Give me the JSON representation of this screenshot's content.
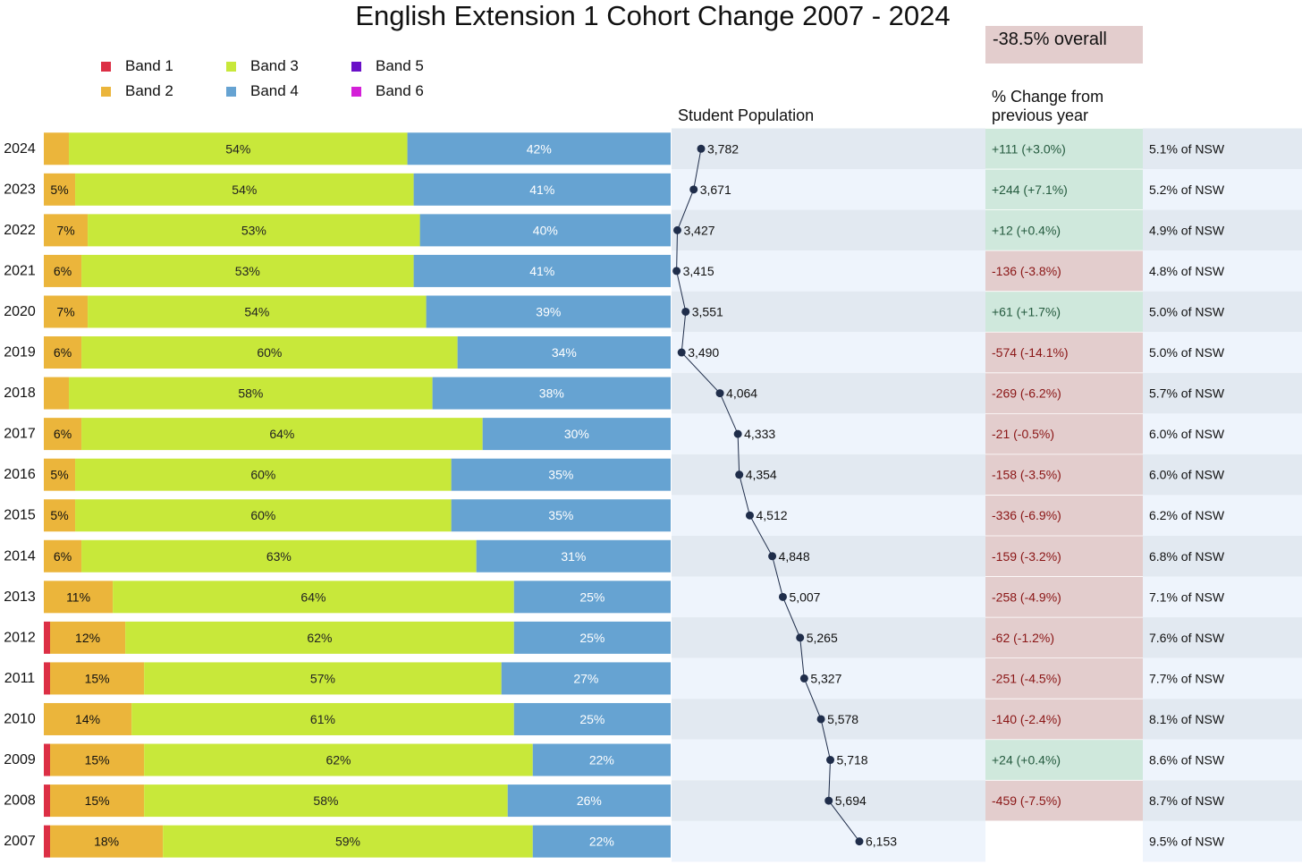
{
  "title": "English Extension 1 Cohort Change 2007 - 2024",
  "overall_change": "-38.5% overall",
  "headers": {
    "population": "Student Population",
    "change_line1": "% Change from",
    "change_line2": "previous year"
  },
  "legend": [
    {
      "label": "Band 1",
      "color": "#dc2f45"
    },
    {
      "label": "Band 3",
      "color": "#c8e83a"
    },
    {
      "label": "Band 5",
      "color": "#6a10c8"
    },
    {
      "label": "Band 2",
      "color": "#ebb53b"
    },
    {
      "label": "Band 4",
      "color": "#66a3d2"
    },
    {
      "label": "Band 6",
      "color": "#d420d8"
    }
  ],
  "colors": {
    "band1": "#dc2f45",
    "band2": "#ebb53b",
    "band3": "#c8e83a",
    "band4": "#66a3d2",
    "row_dark": "#e2e9f1",
    "row_light": "#eef4fc",
    "pos_bg": "#cfe8dc",
    "neg_bg": "#e3cdcd",
    "pos_text": "#245a3e",
    "neg_text": "#8a1515",
    "line": "#1f2d4a"
  },
  "chart_data": {
    "type": "bar",
    "orientation": "horizontal-stacked-percent",
    "title": "English Extension 1 Cohort Change 2007 - 2024",
    "series_names": [
      "Band 1",
      "Band 2",
      "Band 3",
      "Band 4",
      "Band 5",
      "Band 6"
    ],
    "rows": [
      {
        "year": "2024",
        "bands": [
          0,
          4,
          54,
          42
        ],
        "labels": [
          "",
          "",
          "54%",
          "42%"
        ],
        "population": 3782,
        "pop_label": "3,782",
        "change": "+111  (+3.0%)",
        "positive": true,
        "nsw": "5.1% of NSW"
      },
      {
        "year": "2023",
        "bands": [
          0,
          5,
          54,
          41
        ],
        "labels": [
          "",
          "5%",
          "54%",
          "41%"
        ],
        "population": 3671,
        "pop_label": "3,671",
        "change": "+244  (+7.1%)",
        "positive": true,
        "nsw": "5.2% of NSW"
      },
      {
        "year": "2022",
        "bands": [
          0,
          7,
          53,
          40
        ],
        "labels": [
          "",
          "7%",
          "53%",
          "40%"
        ],
        "population": 3427,
        "pop_label": "3,427",
        "change": "+12  (+0.4%)",
        "positive": true,
        "nsw": "4.9% of NSW"
      },
      {
        "year": "2021",
        "bands": [
          0,
          6,
          53,
          41
        ],
        "labels": [
          "",
          "6%",
          "53%",
          "41%"
        ],
        "population": 3415,
        "pop_label": "3,415",
        "change": "-136  (-3.8%)",
        "positive": false,
        "nsw": "4.8% of NSW"
      },
      {
        "year": "2020",
        "bands": [
          0,
          7,
          54,
          39
        ],
        "labels": [
          "",
          "7%",
          "54%",
          "39%"
        ],
        "population": 3551,
        "pop_label": "3,551",
        "change": "+61  (+1.7%)",
        "positive": true,
        "nsw": "5.0% of NSW"
      },
      {
        "year": "2019",
        "bands": [
          0,
          6,
          60,
          34
        ],
        "labels": [
          "",
          "6%",
          "60%",
          "34%"
        ],
        "population": 3490,
        "pop_label": "3,490",
        "change": "-574  (-14.1%)",
        "positive": false,
        "nsw": "5.0% of NSW"
      },
      {
        "year": "2018",
        "bands": [
          0,
          4,
          58,
          38
        ],
        "labels": [
          "",
          "",
          "58%",
          "38%"
        ],
        "population": 4064,
        "pop_label": "4,064",
        "change": "-269  (-6.2%)",
        "positive": false,
        "nsw": "5.7% of NSW"
      },
      {
        "year": "2017",
        "bands": [
          0,
          6,
          64,
          30
        ],
        "labels": [
          "",
          "6%",
          "64%",
          "30%"
        ],
        "population": 4333,
        "pop_label": "4,333",
        "change": "-21  (-0.5%)",
        "positive": false,
        "nsw": "6.0% of NSW"
      },
      {
        "year": "2016",
        "bands": [
          0,
          5,
          60,
          35
        ],
        "labels": [
          "",
          "5%",
          "60%",
          "35%"
        ],
        "population": 4354,
        "pop_label": "4,354",
        "change": "-158  (-3.5%)",
        "positive": false,
        "nsw": "6.0% of NSW"
      },
      {
        "year": "2015",
        "bands": [
          0,
          5,
          60,
          35
        ],
        "labels": [
          "",
          "5%",
          "60%",
          "35%"
        ],
        "population": 4512,
        "pop_label": "4,512",
        "change": "-336  (-6.9%)",
        "positive": false,
        "nsw": "6.2% of NSW"
      },
      {
        "year": "2014",
        "bands": [
          0,
          6,
          63,
          31
        ],
        "labels": [
          "",
          "6%",
          "63%",
          "31%"
        ],
        "population": 4848,
        "pop_label": "4,848",
        "change": "-159  (-3.2%)",
        "positive": false,
        "nsw": "6.8% of NSW"
      },
      {
        "year": "2013",
        "bands": [
          0,
          11,
          64,
          25
        ],
        "labels": [
          "",
          "11%",
          "64%",
          "25%"
        ],
        "population": 5007,
        "pop_label": "5,007",
        "change": "-258  (-4.9%)",
        "positive": false,
        "nsw": "7.1% of NSW"
      },
      {
        "year": "2012",
        "bands": [
          1,
          12,
          62,
          25
        ],
        "labels": [
          "",
          "12%",
          "62%",
          "25%"
        ],
        "population": 5265,
        "pop_label": "5,265",
        "change": "-62  (-1.2%)",
        "positive": false,
        "nsw": "7.6% of NSW"
      },
      {
        "year": "2011",
        "bands": [
          1,
          15,
          57,
          27
        ],
        "labels": [
          "",
          "15%",
          "57%",
          "27%"
        ],
        "population": 5327,
        "pop_label": "5,327",
        "change": "-251  (-4.5%)",
        "positive": false,
        "nsw": "7.7% of NSW"
      },
      {
        "year": "2010",
        "bands": [
          0,
          14,
          61,
          25
        ],
        "labels": [
          "",
          "14%",
          "61%",
          "25%"
        ],
        "population": 5578,
        "pop_label": "5,578",
        "change": "-140  (-2.4%)",
        "positive": false,
        "nsw": "8.1% of NSW"
      },
      {
        "year": "2009",
        "bands": [
          1,
          15,
          62,
          22
        ],
        "labels": [
          "",
          "15%",
          "62%",
          "22%"
        ],
        "population": 5718,
        "pop_label": "5,718",
        "change": "+24  (+0.4%)",
        "positive": true,
        "nsw": "8.6% of NSW"
      },
      {
        "year": "2008",
        "bands": [
          1,
          15,
          58,
          26
        ],
        "labels": [
          "",
          "15%",
          "58%",
          "26%"
        ],
        "population": 5694,
        "pop_label": "5,694",
        "change": "-459  (-7.5%)",
        "positive": false,
        "nsw": "8.7% of NSW"
      },
      {
        "year": "2007",
        "bands": [
          1,
          18,
          59,
          22
        ],
        "labels": [
          "",
          "18%",
          "59%",
          "22%"
        ],
        "population": 6153,
        "pop_label": "6,153",
        "change": "",
        "positive": null,
        "nsw": "9.5% of NSW"
      }
    ],
    "population_range": [
      3000,
      6500
    ],
    "xlim": [
      0,
      100
    ]
  }
}
